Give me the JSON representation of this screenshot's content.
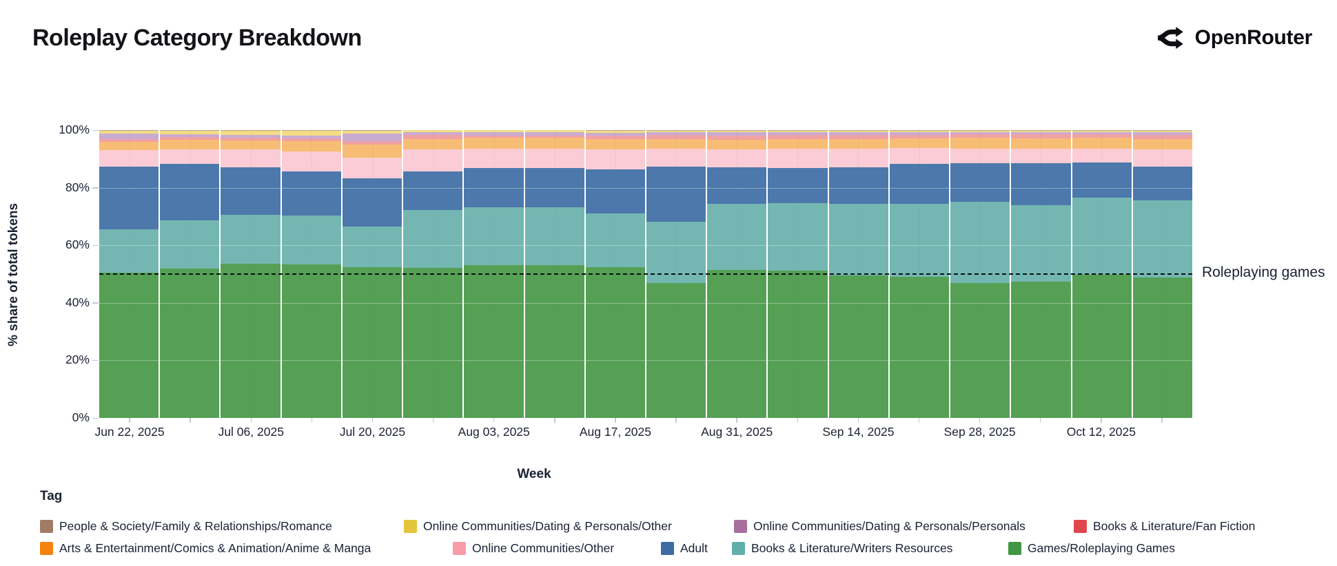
{
  "header": {
    "title": "Roleplay Category Breakdown",
    "brand": "OpenRouter"
  },
  "chart_data": {
    "type": "bar",
    "stacked": true,
    "title": "Roleplay Category Breakdown",
    "xlabel": "Week",
    "ylabel": "% share of total tokens",
    "ylim": [
      0,
      100
    ],
    "grid": "faint",
    "legend_position": "bottom",
    "legend_title": "Tag",
    "yticks": [
      0,
      20,
      40,
      60,
      80,
      100
    ],
    "ytick_labels": [
      "0%",
      "20%",
      "40%",
      "60%",
      "80%",
      "100%"
    ],
    "x_labeled_ticks": [
      "Jun 22, 2025",
      "Jul 06, 2025",
      "Jul 20, 2025",
      "Aug 03, 2025",
      "Aug 17, 2025",
      "Aug 31, 2025",
      "Sep 14, 2025",
      "Sep 28, 2025",
      "Oct 12, 2025"
    ],
    "weeks": [
      "Jun 22, 2025",
      "Jun 29, 2025",
      "Jul 06, 2025",
      "Jul 13, 2025",
      "Jul 20, 2025",
      "Jul 27, 2025",
      "Aug 03, 2025",
      "Aug 10, 2025",
      "Aug 17, 2025",
      "Aug 24, 2025",
      "Aug 31, 2025",
      "Sep 07, 2025",
      "Sep 14, 2025",
      "Sep 21, 2025",
      "Sep 28, 2025",
      "Oct 05, 2025",
      "Oct 12, 2025",
      "Oct 19, 2025"
    ],
    "series": [
      {
        "name": "Games/Roleplaying Games",
        "color": "#3f9643",
        "bar_color": "#55a055",
        "values": [
          50.5,
          52.0,
          53.5,
          53.3,
          52.3,
          52.2,
          53.1,
          53.2,
          52.3,
          47.0,
          51.5,
          51.2,
          49.5,
          49.0,
          46.9,
          47.4,
          49.8,
          48.9
        ]
      },
      {
        "name": "Books & Literature/Writers Resources",
        "color": "#62afa9",
        "bar_color": "#74b7b2",
        "values": [
          15.0,
          16.7,
          17.0,
          17.1,
          14.2,
          20.0,
          20.2,
          19.9,
          18.7,
          21.3,
          22.8,
          23.4,
          25.0,
          25.3,
          28.2,
          26.5,
          26.7,
          26.6
        ]
      },
      {
        "name": "Adult",
        "color": "#3f6ba3",
        "bar_color": "#4c78ab",
        "values": [
          21.8,
          19.6,
          16.7,
          15.2,
          16.7,
          13.5,
          13.5,
          13.8,
          15.4,
          19.1,
          12.9,
          12.3,
          12.5,
          13.9,
          13.5,
          14.6,
          12.3,
          11.9
        ]
      },
      {
        "name": "Online Communities/Other",
        "color": "#f99ba8",
        "bar_color": "#fbccd5",
        "values": [
          5.7,
          5.0,
          6.0,
          7.0,
          7.2,
          7.5,
          6.8,
          6.6,
          7.0,
          6.2,
          6.0,
          6.6,
          6.5,
          5.6,
          5.0,
          5.0,
          4.8,
          5.8
        ]
      },
      {
        "name": "Arts & Entertainment/Comics & Animation/Anime & Manga",
        "color": "#f5820d",
        "bar_color": "#f8bd74",
        "values": [
          2.9,
          3.3,
          3.2,
          3.5,
          4.6,
          3.7,
          3.8,
          3.8,
          3.5,
          3.4,
          3.5,
          3.5,
          3.5,
          3.4,
          3.7,
          3.7,
          3.8,
          3.8
        ]
      },
      {
        "name": "Books & Literature/Fan Fiction",
        "color": "#e0474c",
        "bar_color": "#f0a1a3",
        "values": [
          1.0,
          1.0,
          1.0,
          1.0,
          1.3,
          1.4,
          0.8,
          0.9,
          1.1,
          1.4,
          1.5,
          1.4,
          1.3,
          1.2,
          1.3,
          1.3,
          1.2,
          1.4
        ]
      },
      {
        "name": "Online Communities/Dating & Personals/Personals",
        "color": "#a86f9e",
        "bar_color": "#c9abd1",
        "values": [
          1.9,
          0.9,
          1.0,
          1.1,
          2.6,
          1.1,
          1.0,
          1.0,
          1.1,
          0.8,
          1.0,
          0.9,
          0.9,
          0.9,
          0.6,
          0.7,
          0.7,
          0.8
        ]
      },
      {
        "name": "Online Communities/Dating & Personals/Other",
        "color": "#e4c43a",
        "bar_color": "#f3dc83",
        "values": [
          1.0,
          1.2,
          1.3,
          1.5,
          0.9,
          0.5,
          0.7,
          0.7,
          0.7,
          0.6,
          0.6,
          0.5,
          0.6,
          0.5,
          0.6,
          0.6,
          0.5,
          0.6
        ]
      },
      {
        "name": "People & Society/Family & Relationships/Romance",
        "color": "#a17c65",
        "bar_color": "#b49e90",
        "values": [
          0.2,
          0.3,
          0.3,
          0.3,
          0.2,
          0.1,
          0.1,
          0.1,
          0.2,
          0.2,
          0.2,
          0.2,
          0.2,
          0.2,
          0.2,
          0.2,
          0.2,
          0.2
        ]
      }
    ],
    "legend_rows": [
      [
        8,
        7,
        6,
        5
      ],
      [
        4,
        3,
        2,
        1,
        0
      ]
    ],
    "annotation": {
      "label": "Roleplaying games",
      "y": 50,
      "style": "dashed"
    }
  }
}
